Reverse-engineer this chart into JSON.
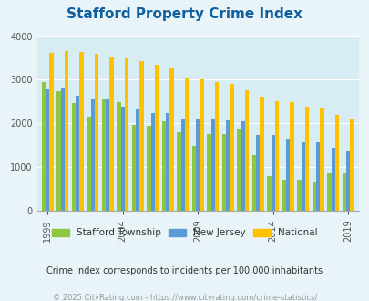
{
  "title": "Stafford Property Crime Index",
  "title_color": "#1060a0",
  "subtitle": "Crime Index corresponds to incidents per 100,000 inhabitants",
  "footer": "© 2025 CityRating.com - https://www.cityrating.com/crime-statistics/",
  "years": [
    1999,
    2000,
    2001,
    2002,
    2003,
    2004,
    2005,
    2006,
    2007,
    2008,
    2009,
    2010,
    2011,
    2012,
    2013,
    2014,
    2015,
    2016,
    2017,
    2018,
    2019
  ],
  "stafford": [
    2950,
    2730,
    2460,
    2160,
    2550,
    2490,
    1960,
    1940,
    2050,
    1800,
    1480,
    1760,
    1760,
    1890,
    1270,
    790,
    720,
    720,
    660,
    860,
    850
  ],
  "new_jersey": [
    2770,
    2830,
    2630,
    2550,
    2560,
    2380,
    2330,
    2230,
    2230,
    2120,
    2090,
    2100,
    2070,
    2040,
    1730,
    1740,
    1650,
    1560,
    1560,
    1440,
    1350
  ],
  "national": [
    3610,
    3650,
    3630,
    3600,
    3540,
    3480,
    3430,
    3340,
    3260,
    3050,
    3000,
    2940,
    2900,
    2760,
    2610,
    2500,
    2480,
    2390,
    2360,
    2200,
    2100
  ],
  "stafford_color": "#8dc63f",
  "nj_color": "#5b9bd5",
  "national_color": "#ffc000",
  "bg_color": "#e8f4f8",
  "plot_bg": "#d8ecf3",
  "ylim": [
    0,
    4000
  ],
  "yticks": [
    0,
    1000,
    2000,
    3000,
    4000
  ],
  "xtick_years": [
    1999,
    2004,
    2009,
    2014,
    2019
  ],
  "bar_width": 0.26,
  "legend_labels": [
    "Stafford Township",
    "New Jersey",
    "National"
  ],
  "subtitle_color": "#333333",
  "footer_color": "#999999"
}
